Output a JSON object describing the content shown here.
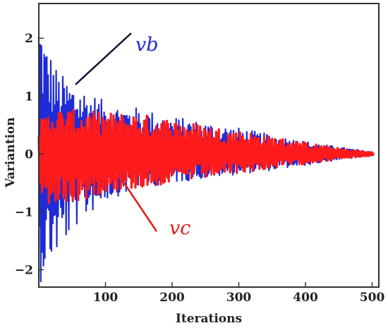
{
  "chart_data": {
    "type": "line",
    "xlabel": "Iterations",
    "ylabel": "Variantion",
    "xlim": [
      0,
      510
    ],
    "ylim": [
      -2.3,
      2.6
    ],
    "x_ticks": [
      100,
      200,
      300,
      400,
      500
    ],
    "x_tick_labels": [
      "100",
      "200",
      "300",
      "400",
      "500"
    ],
    "y_ticks": [
      -2,
      -1,
      0,
      1,
      2
    ],
    "y_tick_labels": [
      "−2",
      "−1",
      "0",
      "1",
      "2"
    ],
    "grid": false,
    "series": [
      {
        "name": "vb",
        "color": "#1f2bd6",
        "envelope": [
          [
            0,
            2.6
          ],
          [
            10,
            2.0
          ],
          [
            30,
            1.4
          ],
          [
            60,
            1.2
          ],
          [
            100,
            0.9
          ],
          [
            150,
            0.8
          ],
          [
            200,
            0.65
          ],
          [
            250,
            0.55
          ],
          [
            300,
            0.45
          ],
          [
            350,
            0.33
          ],
          [
            400,
            0.22
          ],
          [
            450,
            0.12
          ],
          [
            500,
            0.04
          ]
        ],
        "envelope_lower": [
          [
            0,
            -2.3
          ],
          [
            10,
            -2.0
          ],
          [
            30,
            -1.7
          ],
          [
            60,
            -1.2
          ],
          [
            100,
            -0.8
          ],
          [
            150,
            -0.6
          ],
          [
            200,
            -0.5
          ],
          [
            250,
            -0.42
          ],
          [
            300,
            -0.35
          ],
          [
            350,
            -0.28
          ],
          [
            400,
            -0.2
          ],
          [
            450,
            -0.1
          ],
          [
            500,
            -0.04
          ]
        ]
      },
      {
        "name": "vc",
        "color": "#ff1b1b",
        "envelope": [
          [
            0,
            0.55
          ],
          [
            20,
            0.8
          ],
          [
            60,
            0.75
          ],
          [
            100,
            0.72
          ],
          [
            150,
            0.7
          ],
          [
            200,
            0.6
          ],
          [
            250,
            0.5
          ],
          [
            300,
            0.4
          ],
          [
            350,
            0.3
          ],
          [
            400,
            0.2
          ],
          [
            450,
            0.1
          ],
          [
            500,
            0.03
          ]
        ],
        "envelope_lower": [
          [
            0,
            -0.9
          ],
          [
            20,
            -0.9
          ],
          [
            60,
            -0.85
          ],
          [
            100,
            -0.65
          ],
          [
            150,
            -0.6
          ],
          [
            200,
            -0.5
          ],
          [
            250,
            -0.42
          ],
          [
            300,
            -0.33
          ],
          [
            350,
            -0.25
          ],
          [
            400,
            -0.17
          ],
          [
            450,
            -0.09
          ],
          [
            500,
            -0.03
          ]
        ]
      }
    ],
    "annotations": [
      {
        "text": "vb",
        "color": "#1f2bd6",
        "target_x": 55,
        "target_y": 1.2
      },
      {
        "text": "vc",
        "color": "#e01a1a",
        "target_x": 125,
        "target_y": -0.45
      }
    ]
  }
}
